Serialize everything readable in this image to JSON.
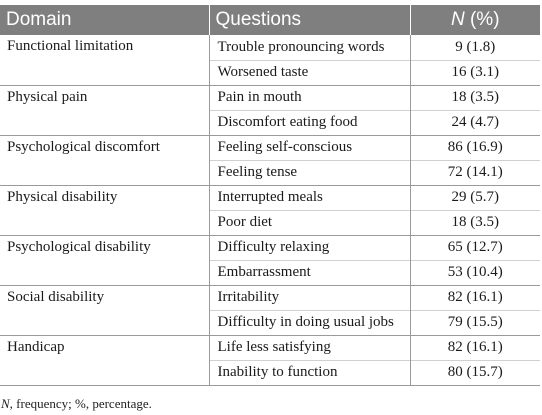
{
  "table": {
    "headers": {
      "domain": "Domain",
      "questions": "Questions",
      "n_symbol": "N",
      "n_rest": " (%)"
    },
    "rows": [
      {
        "domain": "Functional limitation",
        "question": "Trouble pronouncing words",
        "n": "9 (1.8)"
      },
      {
        "domain": "",
        "question": "Worsened taste",
        "n": "16 (3.1)"
      },
      {
        "domain": "Physical pain",
        "question": "Pain in mouth",
        "n": "18 (3.5)"
      },
      {
        "domain": "",
        "question": "Discomfort eating food",
        "n": "24 (4.7)"
      },
      {
        "domain": "Psychological discomfort",
        "question": "Feeling self-conscious",
        "n": "86 (16.9)"
      },
      {
        "domain": "",
        "question": "Feeling tense",
        "n": "72 (14.1)"
      },
      {
        "domain": "Physical disability",
        "question": "Interrupted meals",
        "n": "29 (5.7)"
      },
      {
        "domain": "",
        "question": "Poor diet",
        "n": "18 (3.5)"
      },
      {
        "domain": "Psychological disability",
        "question": "Difficulty relaxing",
        "n": "65 (12.7)"
      },
      {
        "domain": "",
        "question": "Embarrassment",
        "n": "53 (10.4)"
      },
      {
        "domain": "Social disability",
        "question": "Irritability",
        "n": "82 (16.1)"
      },
      {
        "domain": "",
        "question": "Difficulty in doing usual jobs",
        "n": "79 (15.5)"
      },
      {
        "domain": "Handicap",
        "question": "Life less satisfying",
        "n": "82 (16.1)"
      },
      {
        "domain": "",
        "question": "Inability to function",
        "n": "80 (15.7)"
      }
    ]
  },
  "footnote": {
    "symbol": "N",
    "text": ", frequency; %, percentage."
  },
  "colors": {
    "header_bg": "#7f7f7f",
    "header_text": "#ffffff",
    "border": "#9a9a9a"
  }
}
